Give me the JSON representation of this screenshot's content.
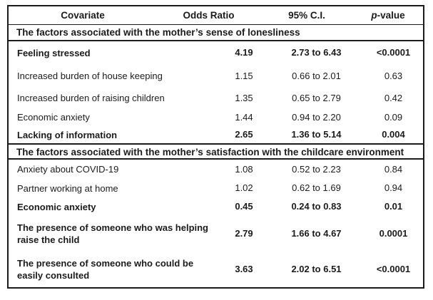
{
  "table": {
    "headers": {
      "covariate": "Covariate",
      "odds_ratio": "Odds Ratio",
      "ci": "95% C.I.",
      "pvalue_italic": "p",
      "pvalue_rest": "-value"
    },
    "sections": [
      {
        "title": "The factors associated with the mother’s sense of lonesliness",
        "rows": [
          {
            "covariate": "Feeling stressed",
            "odds_ratio": "4.19",
            "ci": "2.73 to 6.43",
            "pvalue": "<0.0001",
            "emphasis": true
          },
          {
            "covariate": "Increased burden of house keeping",
            "odds_ratio": "1.15",
            "ci": "0.66 to 2.01",
            "pvalue": "0.63",
            "emphasis": false
          },
          {
            "covariate": "Increased burden of raising children",
            "odds_ratio": "1.35",
            "ci": "0.65 to 2.79",
            "pvalue": "0.42",
            "emphasis": false
          },
          {
            "covariate": "Economic anxiety",
            "odds_ratio": "1.44",
            "ci": "0.94 to 2.20",
            "pvalue": "0.09",
            "emphasis": false
          },
          {
            "covariate": "Lacking of information",
            "odds_ratio": "2.65",
            "ci": "1.36 to 5.14",
            "pvalue": "0.004",
            "emphasis": true
          }
        ]
      },
      {
        "title": "The factors associated with the mother’s satisfaction with the childcare environment",
        "rows": [
          {
            "covariate": "Anxiety about COVID-19",
            "odds_ratio": "1.08",
            "ci": "0.52 to 2.23",
            "pvalue": "0.84",
            "emphasis": false
          },
          {
            "covariate": "Partner working at home",
            "odds_ratio": "1.02",
            "ci": "0.62 to 1.69",
            "pvalue": "0.94",
            "emphasis": false
          },
          {
            "covariate": "Economic anxiety",
            "odds_ratio": "0.45",
            "ci": "0.24 to 0.83",
            "pvalue": "0.01",
            "emphasis": true
          },
          {
            "covariate": "The presence of someone who was helping raise the child",
            "odds_ratio": "2.79",
            "ci": "1.66 to 4.67",
            "pvalue": "0.0001",
            "emphasis": true
          },
          {
            "covariate": "The presence of someone who could be easily consulted",
            "odds_ratio": "3.63",
            "ci": "2.02 to 6.51",
            "pvalue": "<0.0001",
            "emphasis": true
          }
        ]
      }
    ]
  }
}
